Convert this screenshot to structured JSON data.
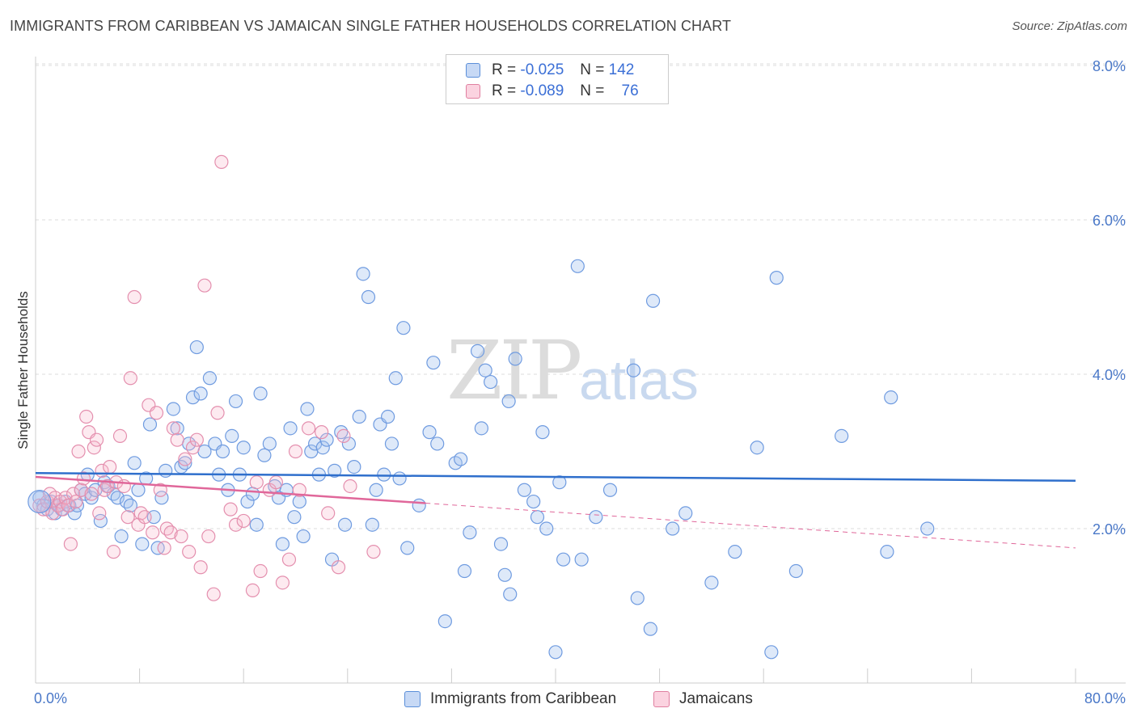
{
  "title": "IMMIGRANTS FROM CARIBBEAN VS JAMAICAN SINGLE FATHER HOUSEHOLDS CORRELATION CHART",
  "source": "Source: ZipAtlas.com",
  "watermark": {
    "zip": "ZIP",
    "atlas": "atlas"
  },
  "legend": {
    "rows": [
      {
        "r_label": "R =",
        "r_value": "-0.025",
        "n_label": "N =",
        "n_value": "142",
        "color": "#a9c4f0",
        "border": "#5b8fd9"
      },
      {
        "r_label": "R =",
        "r_value": "-0.089",
        "n_label": "N =",
        "n_value": "76",
        "color": "#f7b9cd",
        "border": "#e07fa0"
      }
    ]
  },
  "bottom_legend": [
    "Immigrants from Caribbean",
    "Jamaicans"
  ],
  "chart_data": {
    "type": "scatter",
    "title": "IMMIGRANTS FROM CARIBBEAN VS JAMAICAN SINGLE FATHER HOUSEHOLDS CORRELATION CHART",
    "xlabel": "",
    "ylabel": "Single Father Households",
    "xlim": [
      0,
      80
    ],
    "ylim": [
      0,
      8.3
    ],
    "x_tick_labels": [
      "0.0%",
      "80.0%"
    ],
    "y_ticks": [
      2,
      4,
      6,
      8
    ],
    "y_tick_labels": [
      "2.0%",
      "4.0%",
      "6.0%",
      "8.0%"
    ],
    "grid": "horizontal dashed",
    "legend_position": "top-center",
    "colors": {
      "blue": "#5b8fd9",
      "blue_fill": "#a9c4f0",
      "pink": "#e07fa0",
      "pink_fill": "#f7b9cd",
      "blue_line": "#2f6fcc",
      "pink_line": "#e0679a"
    },
    "series": [
      {
        "name": "Immigrants from Caribbean",
        "trend": {
          "x": [
            0,
            80
          ],
          "y": [
            2.72,
            2.62
          ]
        },
        "points": [
          [
            0.3,
            2.4
          ],
          [
            0.6,
            2.3
          ],
          [
            0.9,
            2.25
          ],
          [
            1.2,
            2.35
          ],
          [
            1.5,
            2.2
          ],
          [
            1.8,
            2.3
          ],
          [
            2.0,
            2.25
          ],
          [
            2.3,
            2.35
          ],
          [
            2.6,
            2.3
          ],
          [
            3.0,
            2.2
          ],
          [
            3.2,
            2.3
          ],
          [
            3.5,
            2.5
          ],
          [
            3.8,
            2.45
          ],
          [
            4.0,
            2.7
          ],
          [
            4.3,
            2.4
          ],
          [
            4.6,
            2.5
          ],
          [
            5.0,
            2.1
          ],
          [
            5.3,
            2.6
          ],
          [
            5.6,
            2.55
          ],
          [
            6.0,
            2.45
          ],
          [
            6.3,
            2.4
          ],
          [
            6.6,
            1.9
          ],
          [
            7.0,
            2.35
          ],
          [
            7.3,
            2.3
          ],
          [
            7.6,
            2.85
          ],
          [
            7.9,
            2.5
          ],
          [
            8.2,
            1.8
          ],
          [
            8.5,
            2.65
          ],
          [
            8.8,
            3.35
          ],
          [
            9.1,
            2.15
          ],
          [
            9.4,
            1.75
          ],
          [
            9.7,
            2.4
          ],
          [
            10.0,
            2.75
          ],
          [
            10.6,
            3.55
          ],
          [
            10.9,
            3.3
          ],
          [
            11.2,
            2.8
          ],
          [
            11.5,
            2.85
          ],
          [
            11.8,
            3.1
          ],
          [
            12.1,
            3.7
          ],
          [
            12.4,
            4.35
          ],
          [
            12.7,
            3.75
          ],
          [
            13.0,
            3.0
          ],
          [
            13.4,
            3.95
          ],
          [
            13.8,
            3.1
          ],
          [
            14.1,
            2.7
          ],
          [
            14.4,
            3.0
          ],
          [
            14.8,
            2.5
          ],
          [
            15.1,
            3.2
          ],
          [
            15.4,
            3.65
          ],
          [
            15.7,
            2.7
          ],
          [
            16.0,
            3.05
          ],
          [
            16.3,
            2.35
          ],
          [
            16.7,
            2.45
          ],
          [
            17.0,
            2.05
          ],
          [
            17.3,
            3.75
          ],
          [
            17.6,
            2.95
          ],
          [
            18.0,
            3.1
          ],
          [
            18.4,
            2.55
          ],
          [
            18.7,
            2.4
          ],
          [
            19.0,
            1.8
          ],
          [
            19.3,
            2.5
          ],
          [
            19.6,
            3.3
          ],
          [
            19.9,
            2.15
          ],
          [
            20.3,
            2.35
          ],
          [
            20.6,
            1.9
          ],
          [
            20.9,
            3.55
          ],
          [
            21.2,
            3.0
          ],
          [
            21.5,
            3.1
          ],
          [
            21.8,
            2.7
          ],
          [
            22.1,
            3.05
          ],
          [
            22.4,
            3.15
          ],
          [
            22.8,
            1.6
          ],
          [
            23.0,
            2.75
          ],
          [
            23.5,
            3.25
          ],
          [
            23.8,
            2.05
          ],
          [
            24.1,
            3.1
          ],
          [
            24.5,
            2.8
          ],
          [
            24.9,
            3.45
          ],
          [
            25.2,
            5.3
          ],
          [
            25.6,
            5.0
          ],
          [
            25.9,
            2.05
          ],
          [
            26.2,
            2.5
          ],
          [
            26.5,
            3.35
          ],
          [
            26.8,
            2.7
          ],
          [
            27.1,
            3.45
          ],
          [
            27.4,
            3.1
          ],
          [
            27.7,
            3.95
          ],
          [
            28.0,
            2.65
          ],
          [
            28.3,
            4.6
          ],
          [
            28.6,
            1.75
          ],
          [
            29.5,
            2.3
          ],
          [
            30.3,
            3.25
          ],
          [
            30.6,
            4.15
          ],
          [
            30.9,
            3.1
          ],
          [
            31.5,
            0.8
          ],
          [
            32.3,
            2.85
          ],
          [
            32.7,
            2.9
          ],
          [
            33.0,
            1.45
          ],
          [
            33.4,
            1.95
          ],
          [
            34.0,
            4.3
          ],
          [
            34.3,
            3.3
          ],
          [
            34.6,
            4.05
          ],
          [
            35.0,
            3.9
          ],
          [
            35.8,
            1.8
          ],
          [
            36.1,
            1.4
          ],
          [
            36.4,
            3.65
          ],
          [
            36.5,
            1.15
          ],
          [
            36.9,
            4.2
          ],
          [
            37.6,
            2.5
          ],
          [
            38.3,
            2.35
          ],
          [
            38.6,
            2.15
          ],
          [
            39.0,
            3.25
          ],
          [
            39.3,
            2.0
          ],
          [
            40.0,
            0.4
          ],
          [
            40.3,
            2.6
          ],
          [
            40.6,
            1.6
          ],
          [
            41.7,
            5.4
          ],
          [
            42.0,
            1.6
          ],
          [
            43.1,
            2.15
          ],
          [
            44.2,
            2.5
          ],
          [
            46.0,
            4.05
          ],
          [
            46.3,
            1.1
          ],
          [
            47.3,
            0.7
          ],
          [
            47.5,
            4.95
          ],
          [
            49.0,
            2.0
          ],
          [
            50.0,
            2.2
          ],
          [
            52.0,
            1.3
          ],
          [
            53.8,
            1.7
          ],
          [
            55.5,
            3.05
          ],
          [
            56.6,
            0.4
          ],
          [
            57.0,
            5.25
          ],
          [
            58.5,
            1.45
          ],
          [
            62.0,
            3.2
          ],
          [
            65.5,
            1.7
          ],
          [
            65.8,
            3.7
          ],
          [
            68.6,
            2.0
          ]
        ]
      },
      {
        "name": "Jamaicans",
        "trend": {
          "x": [
            0,
            30
          ],
          "y": [
            2.67,
            2.33
          ],
          "dashed_to": [
            80,
            1.75
          ]
        },
        "points": [
          [
            0.3,
            2.3
          ],
          [
            0.6,
            2.25
          ],
          [
            0.9,
            2.35
          ],
          [
            1.1,
            2.45
          ],
          [
            1.3,
            2.2
          ],
          [
            1.5,
            2.4
          ],
          [
            1.7,
            2.3
          ],
          [
            1.9,
            2.35
          ],
          [
            2.1,
            2.25
          ],
          [
            2.3,
            2.4
          ],
          [
            2.5,
            2.3
          ],
          [
            2.7,
            1.8
          ],
          [
            2.9,
            2.45
          ],
          [
            3.1,
            2.35
          ],
          [
            3.3,
            3.0
          ],
          [
            3.5,
            2.5
          ],
          [
            3.7,
            2.65
          ],
          [
            3.9,
            3.45
          ],
          [
            4.1,
            3.25
          ],
          [
            4.3,
            2.45
          ],
          [
            4.5,
            3.05
          ],
          [
            4.7,
            3.15
          ],
          [
            4.9,
            2.2
          ],
          [
            5.1,
            2.75
          ],
          [
            5.3,
            2.5
          ],
          [
            5.5,
            2.55
          ],
          [
            5.7,
            2.8
          ],
          [
            6.0,
            1.7
          ],
          [
            6.2,
            2.6
          ],
          [
            6.5,
            3.2
          ],
          [
            6.8,
            2.55
          ],
          [
            7.1,
            2.15
          ],
          [
            7.3,
            3.95
          ],
          [
            7.6,
            5.0
          ],
          [
            7.9,
            2.05
          ],
          [
            8.1,
            2.2
          ],
          [
            8.4,
            2.15
          ],
          [
            8.7,
            3.6
          ],
          [
            9.0,
            1.95
          ],
          [
            9.3,
            3.5
          ],
          [
            9.6,
            2.5
          ],
          [
            9.9,
            1.75
          ],
          [
            10.1,
            2.0
          ],
          [
            10.4,
            1.95
          ],
          [
            10.6,
            3.3
          ],
          [
            10.9,
            3.15
          ],
          [
            11.2,
            1.9
          ],
          [
            11.5,
            2.9
          ],
          [
            11.8,
            1.7
          ],
          [
            12.1,
            3.05
          ],
          [
            12.4,
            3.15
          ],
          [
            12.7,
            1.5
          ],
          [
            13.0,
            5.15
          ],
          [
            13.3,
            1.9
          ],
          [
            13.7,
            1.15
          ],
          [
            14.0,
            3.5
          ],
          [
            14.3,
            6.75
          ],
          [
            15.0,
            2.25
          ],
          [
            15.4,
            2.05
          ],
          [
            16.0,
            2.1
          ],
          [
            16.7,
            1.2
          ],
          [
            17.0,
            2.6
          ],
          [
            17.3,
            1.45
          ],
          [
            18.0,
            2.5
          ],
          [
            18.5,
            2.6
          ],
          [
            19.0,
            1.3
          ],
          [
            19.5,
            1.6
          ],
          [
            20.0,
            3.0
          ],
          [
            20.3,
            2.5
          ],
          [
            21.0,
            3.3
          ],
          [
            22.0,
            3.25
          ],
          [
            22.5,
            2.2
          ],
          [
            23.3,
            1.5
          ],
          [
            23.7,
            3.2
          ],
          [
            24.2,
            2.55
          ],
          [
            26.0,
            1.7
          ]
        ]
      }
    ]
  }
}
